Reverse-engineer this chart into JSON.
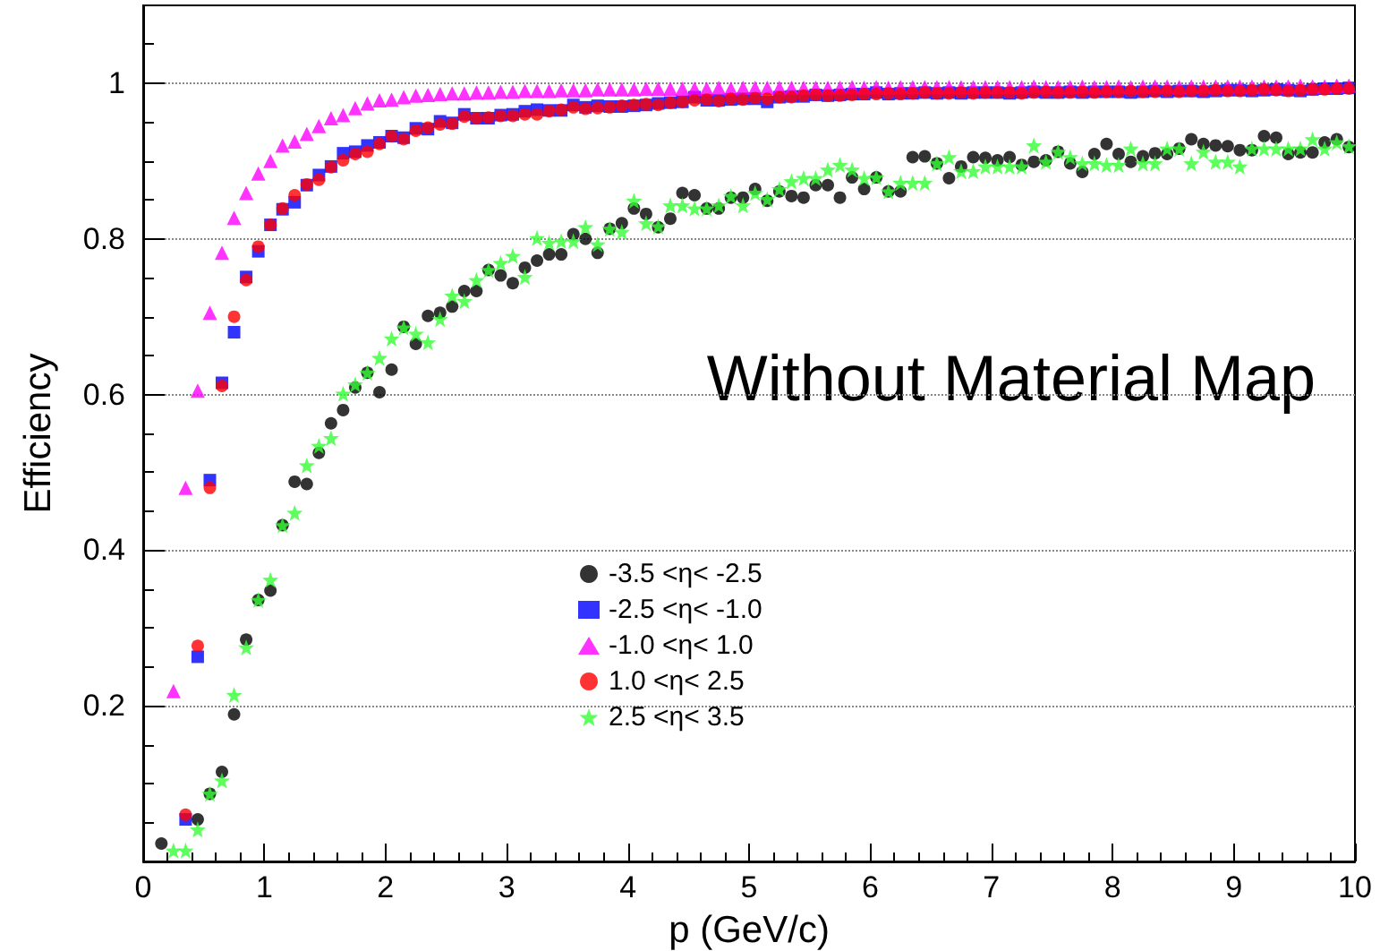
{
  "chart_data": {
    "type": "scatter",
    "xlabel": "p (GeV/c)",
    "ylabel": "Efficiency",
    "annotations": [
      "Without Material Map"
    ],
    "xlim": [
      0,
      10
    ],
    "xticks": [
      0,
      1,
      2,
      3,
      4,
      5,
      6,
      7,
      8,
      9,
      10
    ],
    "ylim": [
      0,
      1.1
    ],
    "yticks": [
      {
        "value": 0,
        "label": null
      },
      0.2,
      0.4,
      0.6,
      0.8,
      1
    ],
    "grid": "y",
    "legend": "bottom",
    "x": [
      0.25,
      0.35,
      0.45,
      0.55,
      0.65,
      0.75,
      0.85,
      0.95,
      1.05,
      1.15,
      1.25,
      1.35,
      1.45,
      1.55,
      1.65,
      1.75,
      1.85,
      1.95,
      2.05,
      2.15,
      2.25,
      2.35,
      2.45,
      2.55,
      2.65,
      2.75,
      2.85,
      2.95,
      3.05,
      3.15,
      3.25,
      3.35,
      3.45,
      3.55,
      3.65,
      3.75,
      3.85,
      3.95,
      4.05,
      4.15,
      4.25,
      4.35,
      4.45,
      4.55,
      4.65,
      4.75,
      4.85,
      4.95,
      5.05,
      5.15,
      5.25,
      5.35,
      5.45,
      5.55,
      5.65,
      5.75,
      5.85,
      5.95,
      6.05,
      6.15,
      6.25,
      6.35,
      6.45,
      6.55,
      6.65,
      6.75,
      6.85,
      6.95,
      7.05,
      7.15,
      7.25,
      7.35,
      7.45,
      7.55,
      7.65,
      7.75,
      7.85,
      7.95,
      8.05,
      8.15,
      8.25,
      8.35,
      8.45,
      8.55,
      8.65,
      8.75,
      8.85,
      8.95,
      9.05,
      9.15,
      9.25,
      9.35,
      9.45,
      9.55,
      9.65,
      9.75,
      9.85,
      9.95
    ],
    "series": [
      {
        "name": "-3.5 <η< -2.5",
        "color": "#000000",
        "marker": "circle",
        "x": [
          0.15,
          0.45,
          0.55,
          0.65,
          0.75,
          0.85,
          0.95,
          1.05,
          1.15,
          1.25,
          1.35,
          1.45,
          1.55,
          1.65,
          1.75,
          1.85,
          1.95,
          2.05,
          2.15,
          2.25,
          2.35,
          2.45,
          2.55,
          2.65,
          2.75,
          2.85,
          2.95,
          3.05,
          3.15,
          3.25,
          3.35,
          3.45,
          3.55,
          3.65,
          3.75,
          3.85,
          3.95,
          4.05,
          4.15,
          4.25,
          4.35,
          4.45,
          4.55,
          4.65,
          4.75,
          4.85,
          4.95,
          5.05,
          5.15,
          5.25,
          5.35,
          5.45,
          5.55,
          5.65,
          5.75,
          5.85,
          5.95,
          6.05,
          6.15,
          6.25,
          6.35,
          6.45,
          6.55,
          6.65,
          6.75,
          6.85,
          6.95,
          7.05,
          7.15,
          7.25,
          7.35,
          7.45,
          7.55,
          7.65,
          7.75,
          7.85,
          7.95,
          8.05,
          8.15,
          8.25,
          8.35,
          8.45,
          8.55,
          8.65,
          8.75,
          8.85,
          8.95,
          9.05,
          9.15,
          9.25,
          9.35,
          9.45,
          9.55,
          9.65,
          9.75,
          9.85,
          9.95
        ],
        "values": [
          0.023,
          0.054,
          0.087,
          0.115,
          0.189,
          0.285,
          0.336,
          0.348,
          0.432,
          0.488,
          0.485,
          0.525,
          0.563,
          0.58,
          0.609,
          0.628,
          0.603,
          0.632,
          0.687,
          0.665,
          0.701,
          0.705,
          0.713,
          0.733,
          0.733,
          0.76,
          0.753,
          0.743,
          0.763,
          0.772,
          0.78,
          0.78,
          0.806,
          0.8,
          0.782,
          0.813,
          0.82,
          0.839,
          0.832,
          0.815,
          0.826,
          0.859,
          0.856,
          0.839,
          0.839,
          0.853,
          0.853,
          0.864,
          0.849,
          0.861,
          0.855,
          0.853,
          0.869,
          0.869,
          0.853,
          0.879,
          0.864,
          0.879,
          0.861,
          0.861,
          0.905,
          0.906,
          0.897,
          0.878,
          0.893,
          0.905,
          0.904,
          0.901,
          0.905,
          0.895,
          0.899,
          0.901,
          0.912,
          0.897,
          0.886,
          0.909,
          0.922,
          0.909,
          0.899,
          0.906,
          0.91,
          0.909,
          0.916,
          0.928,
          0.922,
          0.92,
          0.919,
          0.914,
          0.914,
          0.932,
          0.93,
          0.909,
          0.911,
          0.911,
          0.924,
          0.928,
          0.918
        ]
      },
      {
        "name": "-2.5 <η< -1.0",
        "color": "#0000ff",
        "marker": "square",
        "values": [
          null,
          0.054,
          0.263,
          0.49,
          0.615,
          0.68,
          0.751,
          0.784,
          0.818,
          0.838,
          0.847,
          0.869,
          0.882,
          0.893,
          0.91,
          0.912,
          0.92,
          0.924,
          0.932,
          0.93,
          0.942,
          0.941,
          0.951,
          0.949,
          0.96,
          0.955,
          0.955,
          0.959,
          0.96,
          0.964,
          0.966,
          0.965,
          0.965,
          0.972,
          0.969,
          0.971,
          0.97,
          0.97,
          0.971,
          0.972,
          0.974,
          0.975,
          0.976,
          0.982,
          0.978,
          0.978,
          0.979,
          0.98,
          0.98,
          0.976,
          0.982,
          0.983,
          0.983,
          0.985,
          0.984,
          0.985,
          0.986,
          0.986,
          0.988,
          0.986,
          0.987,
          0.987,
          0.988,
          0.987,
          0.988,
          0.987,
          0.988,
          0.988,
          0.988,
          0.987,
          0.988,
          0.989,
          0.988,
          0.988,
          0.989,
          0.988,
          0.989,
          0.989,
          0.989,
          0.988,
          0.989,
          0.99,
          0.989,
          0.99,
          0.99,
          0.989,
          0.99,
          0.991,
          0.991,
          0.99,
          0.991,
          0.992,
          0.991,
          0.99,
          0.992,
          0.993,
          0.993,
          0.994
        ]
      },
      {
        "name": "-1.0 <η< 1.0",
        "color": "#ff00ff",
        "marker": "triangle",
        "values": [
          0.219,
          0.48,
          0.605,
          0.705,
          0.782,
          0.827,
          0.859,
          0.884,
          0.9,
          0.92,
          0.925,
          0.935,
          0.945,
          0.955,
          0.959,
          0.968,
          0.974,
          0.978,
          0.979,
          0.982,
          0.984,
          0.985,
          0.986,
          0.987,
          0.987,
          0.988,
          0.988,
          0.989,
          0.989,
          0.99,
          0.99,
          0.99,
          0.991,
          0.991,
          0.991,
          0.992,
          0.992,
          0.992,
          0.992,
          0.993,
          0.993,
          0.993,
          0.993,
          0.993,
          0.993,
          0.994,
          0.993,
          0.994,
          0.994,
          0.994,
          0.994,
          0.994,
          0.994,
          0.994,
          0.994,
          0.994,
          0.995,
          0.994,
          0.995,
          0.994,
          0.995,
          0.995,
          0.995,
          0.995,
          0.995,
          0.995,
          0.995,
          0.995,
          0.995,
          0.995,
          0.995,
          0.996,
          0.995,
          0.995,
          0.995,
          0.996,
          0.995,
          0.995,
          0.996,
          0.995,
          0.996,
          0.996,
          0.996,
          0.995,
          0.996,
          0.996,
          0.996,
          0.996,
          0.996,
          0.996,
          0.996,
          0.996,
          0.996,
          0.997,
          0.996,
          0.996,
          0.997,
          0.997
        ]
      },
      {
        "name": "1.0 <η< 2.5",
        "color": "#ff0000",
        "marker": "circle",
        "values": [
          null,
          0.06,
          0.277,
          0.48,
          0.611,
          0.7,
          0.747,
          0.79,
          0.818,
          0.839,
          0.856,
          0.87,
          0.876,
          0.892,
          0.901,
          0.909,
          0.912,
          0.922,
          0.932,
          0.928,
          0.939,
          0.943,
          0.947,
          0.948,
          0.957,
          0.955,
          0.956,
          0.958,
          0.958,
          0.96,
          0.96,
          0.964,
          0.966,
          0.969,
          0.967,
          0.968,
          0.969,
          0.971,
          0.972,
          0.973,
          0.972,
          0.975,
          0.976,
          0.978,
          0.979,
          0.977,
          0.98,
          0.979,
          0.981,
          0.98,
          0.982,
          0.982,
          0.984,
          0.985,
          0.984,
          0.984,
          0.985,
          0.986,
          0.986,
          0.987,
          0.986,
          0.987,
          0.988,
          0.987,
          0.987,
          0.988,
          0.987,
          0.988,
          0.988,
          0.988,
          0.987,
          0.988,
          0.989,
          0.988,
          0.988,
          0.989,
          0.988,
          0.989,
          0.989,
          0.99,
          0.989,
          0.989,
          0.99,
          0.989,
          0.99,
          0.99,
          0.991,
          0.99,
          0.99,
          0.991,
          0.992,
          0.991,
          0.99,
          0.991,
          0.992,
          0.992,
          0.993,
          0.993
        ]
      },
      {
        "name": "2.5 <η< 3.5",
        "color": "#33ff33",
        "marker": "star",
        "values": [
          0.014,
          0.014,
          0.041,
          0.087,
          0.104,
          0.214,
          0.275,
          0.336,
          0.362,
          0.432,
          0.448,
          0.509,
          0.534,
          0.544,
          0.601,
          0.613,
          0.628,
          0.647,
          0.672,
          0.686,
          0.678,
          0.667,
          0.697,
          0.727,
          0.72,
          0.747,
          0.76,
          0.769,
          0.778,
          0.751,
          0.801,
          0.795,
          0.797,
          0.797,
          0.815,
          0.793,
          0.813,
          0.809,
          0.849,
          0.82,
          0.816,
          0.843,
          0.843,
          0.839,
          0.839,
          0.843,
          0.855,
          0.843,
          0.859,
          0.851,
          0.864,
          0.874,
          0.878,
          0.878,
          0.889,
          0.895,
          0.889,
          0.878,
          0.879,
          0.861,
          0.872,
          0.872,
          0.872,
          0.897,
          0.905,
          0.887,
          0.887,
          0.893,
          0.893,
          0.893,
          0.893,
          0.92,
          0.899,
          0.912,
          0.905,
          0.897,
          0.897,
          0.895,
          0.895,
          0.916,
          0.897,
          0.897,
          0.916,
          0.916,
          0.897,
          0.912,
          0.899,
          0.899,
          0.893,
          0.916,
          0.916,
          0.916,
          0.916,
          0.916,
          0.928,
          0.916,
          0.924,
          0.919
        ]
      }
    ]
  }
}
